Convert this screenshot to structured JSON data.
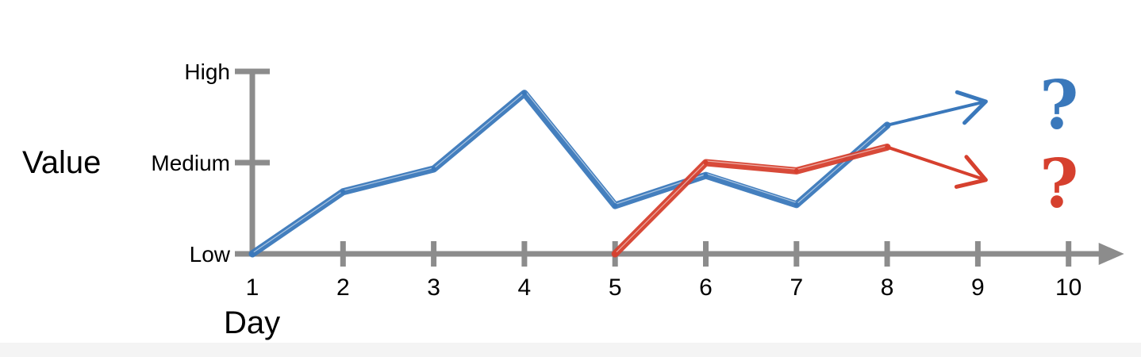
{
  "chart_data": {
    "type": "line",
    "xlabel": "Day",
    "ylabel": "Value",
    "x": [
      1,
      2,
      3,
      4,
      5,
      6,
      7,
      8,
      9,
      10
    ],
    "x_tick_labels": [
      "1",
      "2",
      "3",
      "4",
      "5",
      "6",
      "7",
      "8",
      "9",
      "10"
    ],
    "y_tick_labels": [
      "Low",
      "Medium",
      "High"
    ],
    "ylim": [
      0,
      2
    ],
    "y_tick_values": [
      0,
      1,
      2
    ],
    "grid": false,
    "series": [
      {
        "color": "#3a78bb",
        "points": [
          [
            1,
            0.0
          ],
          [
            2,
            0.68
          ],
          [
            3,
            0.93
          ],
          [
            4,
            1.76
          ],
          [
            5,
            0.53
          ],
          [
            6,
            0.86
          ],
          [
            7,
            0.54
          ],
          [
            8,
            1.41
          ],
          [
            9,
            1.67
          ]
        ],
        "projection_arrow": true
      },
      {
        "color": "#d6402e",
        "points": [
          [
            5,
            0.0
          ],
          [
            6,
            1.0
          ],
          [
            7,
            0.91
          ],
          [
            8,
            1.17
          ],
          [
            9,
            0.81
          ]
        ],
        "projection_arrow": true
      }
    ],
    "annotations": [
      {
        "text": "?",
        "color": "#3a78bb",
        "x": 10,
        "y": 1.67
      },
      {
        "text": "?",
        "color": "#d6402e",
        "x": 10,
        "y": 0.81
      }
    ]
  }
}
